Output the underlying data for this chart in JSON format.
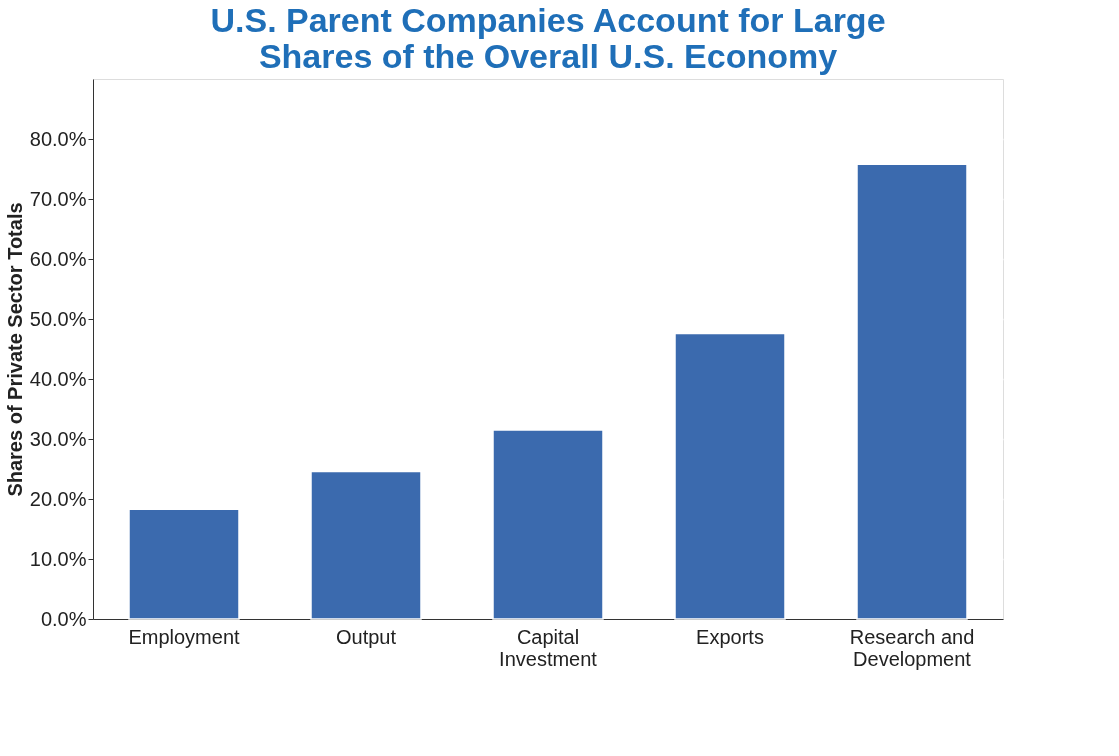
{
  "chart_data": {
    "type": "bar",
    "title": "U.S. Parent Companies Account for Large Shares of the Overall U.S. Economy",
    "ylabel": "Shares of Private Sector Totals",
    "categories": [
      "Employment",
      "Output",
      "Capital Investment",
      "Exports",
      "Research and Development"
    ],
    "values": [
      18.3,
      24.6,
      31.5,
      47.6,
      75.8
    ],
    "color": "#3b6aae",
    "ylim": [
      0,
      90
    ],
    "yticks": [
      {
        "value": 0,
        "label": "0.0%"
      },
      {
        "value": 10,
        "label": "10.0%"
      },
      {
        "value": 20,
        "label": "20.0%"
      },
      {
        "value": 30,
        "label": "30.0%"
      },
      {
        "value": 40,
        "label": "40.0%"
      },
      {
        "value": 50,
        "label": "50.0%"
      },
      {
        "value": 60,
        "label": "60.0%"
      },
      {
        "value": 70,
        "label": "70.0%"
      },
      {
        "value": 80,
        "label": "80.0%"
      }
    ],
    "grid": "y"
  }
}
